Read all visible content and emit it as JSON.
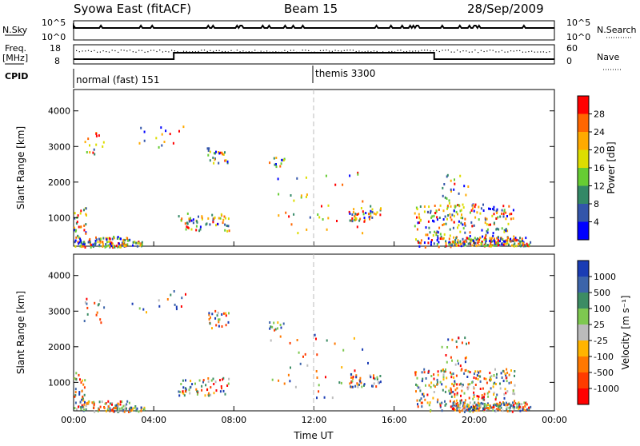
{
  "header": {
    "station": "Syowa East (fitACF)",
    "beam": "Beam 15",
    "date": "28/Sep/2009"
  },
  "nsky_panel": {
    "left_label": "N.Sky",
    "right_label": "N.Search",
    "left_ticks": [
      "10^5",
      "10^0"
    ],
    "right_ticks": [
      "10^5",
      "10^0"
    ]
  },
  "freq_panel": {
    "left_label_1": "Freq.",
    "left_label_2": "[MHz]",
    "right_label": "Nave",
    "left_ticks": [
      "18",
      "8"
    ],
    "right_ticks": [
      "60",
      "0"
    ]
  },
  "cpid": {
    "label": "CPID",
    "segments": [
      {
        "name": "normal (fast) 151",
        "start_hour": 0
      },
      {
        "name": "themis 3300",
        "start_hour": 12
      }
    ]
  },
  "chart_data": [
    {
      "type": "heatmap",
      "ylabel": "Slant Range [km]",
      "xlabel": "",
      "y_ticks": [
        "1000",
        "2000",
        "3000",
        "4000"
      ],
      "ylim": [
        200,
        4600
      ],
      "xlim": [
        0,
        24
      ],
      "colorbar": {
        "label": "Power [dB]",
        "ticks": [
          "28",
          "24",
          "20",
          "16",
          "12",
          "8",
          "4"
        ],
        "colors": [
          "#ff0000",
          "#ff6600",
          "#ffaa00",
          "#dddd00",
          "#66cc33",
          "#338866",
          "#3355aa",
          "#0000ff"
        ]
      }
    },
    {
      "type": "heatmap",
      "ylabel": "Slant Range [km]",
      "xlabel": "Time UT",
      "y_ticks": [
        "1000",
        "2000",
        "3000",
        "4000"
      ],
      "x_ticks": [
        "00:00",
        "04:00",
        "08:00",
        "12:00",
        "16:00",
        "20:00",
        "00:00"
      ],
      "ylim": [
        200,
        4600
      ],
      "xlim": [
        0,
        24
      ],
      "colorbar": {
        "label": "Velocity [m s⁻¹]",
        "ticks": [
          "1000",
          "500",
          "100",
          "25",
          "-25",
          "-100",
          "-500",
          "-1000"
        ],
        "colors": [
          "#1a3cb4",
          "#3c64aa",
          "#3c8c64",
          "#7ec850",
          "#bbbbbb",
          "#ffb400",
          "#ff7800",
          "#ff3c00",
          "#ff0000"
        ]
      }
    }
  ]
}
